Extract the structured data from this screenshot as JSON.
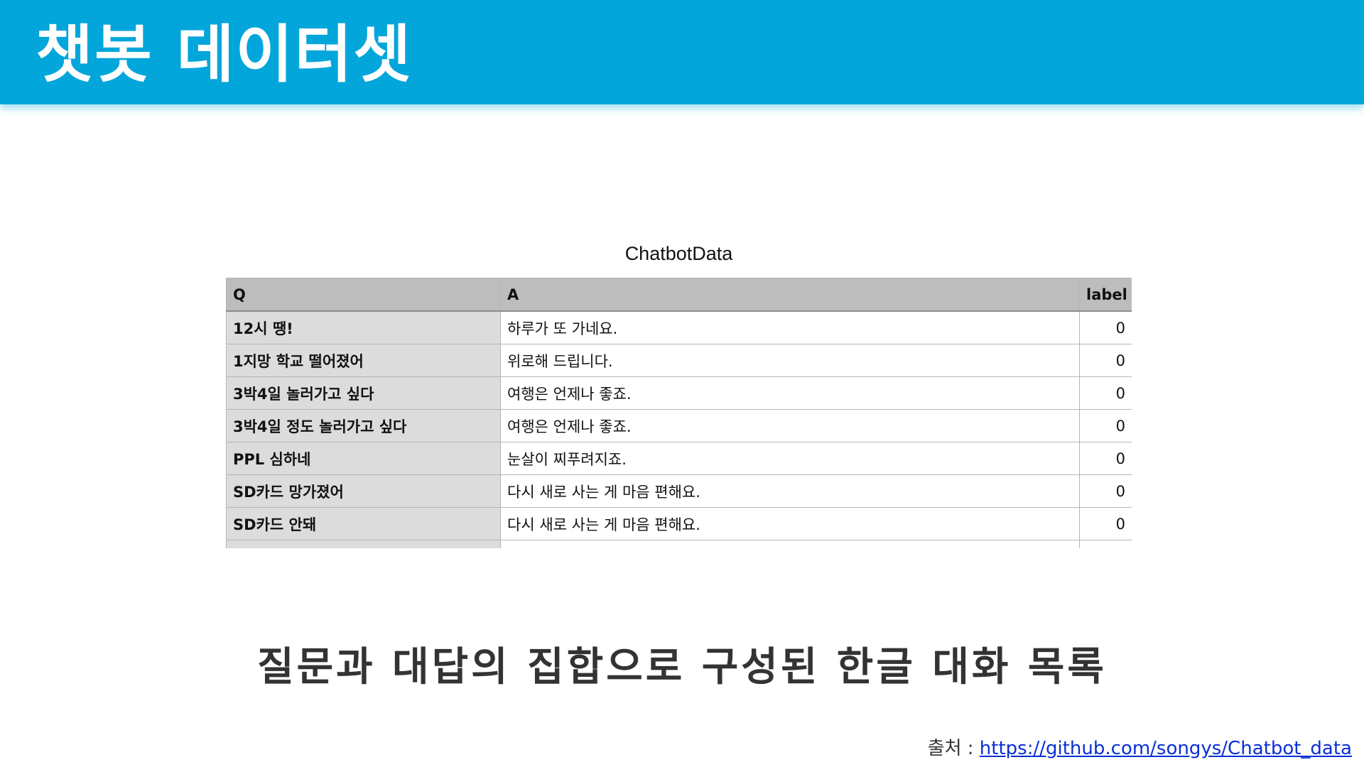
{
  "header": {
    "title": "챗봇 데이터셋"
  },
  "table": {
    "caption": "ChatbotData",
    "columns": [
      "Q",
      "A",
      "label"
    ],
    "rows": [
      {
        "q": "12시 땡!",
        "a": "하루가 또 가네요.",
        "label": "0"
      },
      {
        "q": "1지망 학교 떨어졌어",
        "a": "위로해 드립니다.",
        "label": "0"
      },
      {
        "q": "3박4일 놀러가고 싶다",
        "a": "여행은 언제나 좋죠.",
        "label": "0"
      },
      {
        "q": "3박4일 정도 놀러가고 싶다",
        "a": "여행은 언제나 좋죠.",
        "label": "0"
      },
      {
        "q": "PPL 심하네",
        "a": "눈살이 찌푸려지죠.",
        "label": "0"
      },
      {
        "q": "SD카드 망가졌어",
        "a": "다시 새로 사는 게 마음 편해요.",
        "label": "0"
      },
      {
        "q": "SD카드 안돼",
        "a": "다시 새로 사는 게 마음 편해요.",
        "label": "0"
      },
      {
        "q": "",
        "a": "",
        "label": ""
      }
    ]
  },
  "subtitle": "질문과 대답의 집합으로 구성된 한글 대화 목록",
  "source": {
    "prefix": "출처 : ",
    "link_text": "https://github.com/songys/Chatbot_data"
  },
  "colors": {
    "header_bg": "#03a6db",
    "header_text": "#ffffff",
    "table_header_bg": "#bdbdbd",
    "q_column_bg": "#dcdcdc",
    "link": "#0a2fd6"
  }
}
